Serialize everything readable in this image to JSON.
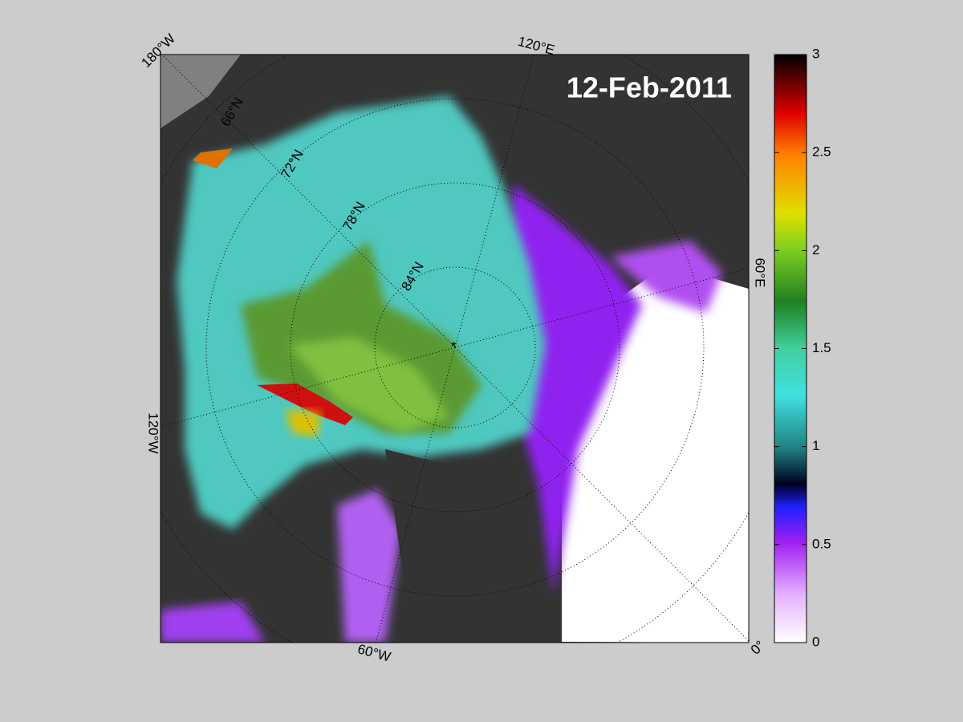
{
  "map": {
    "date": "12-Feb-2011",
    "longitude_labels": [
      "180°W",
      "120°E",
      "60°E",
      "0°",
      "60°W",
      "120°W"
    ],
    "latitude_labels": [
      "66°N",
      "72°N",
      "78°N",
      "84°N"
    ]
  },
  "colorbar": {
    "lim": [
      0,
      3
    ],
    "ticks": [
      0,
      0.5,
      1,
      1.5,
      2,
      2.5,
      3
    ]
  }
}
